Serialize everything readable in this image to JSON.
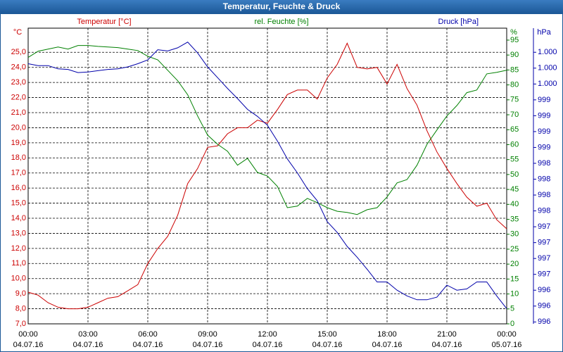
{
  "chart_data": {
    "type": "line",
    "title": "Temperatur, Feuchte & Druck",
    "y_unit": "°C",
    "y2_unit": "%",
    "y3_unit": "hPa",
    "grid": true,
    "x": [
      0,
      0.5,
      1,
      1.5,
      2,
      2.5,
      3,
      3.5,
      4,
      4.5,
      5,
      5.5,
      6,
      6.5,
      7,
      7.5,
      8,
      8.5,
      9,
      9.5,
      10,
      10.5,
      11,
      11.5,
      12,
      12.5,
      13,
      13.5,
      14,
      14.5,
      15,
      15.5,
      16,
      16.5,
      17,
      17.5,
      18,
      18.5,
      19,
      19.5,
      20,
      20.5,
      21,
      21.5,
      22,
      22.5,
      23,
      23.5,
      24
    ],
    "xlim": [
      0,
      24
    ],
    "xticks": [
      {
        "value": 0,
        "label": "00:00"
      },
      {
        "value": 3,
        "label": "03:00"
      },
      {
        "value": 6,
        "label": "06:00"
      },
      {
        "value": 9,
        "label": "09:00"
      },
      {
        "value": 12,
        "label": "12:00"
      },
      {
        "value": 15,
        "label": "15:00"
      },
      {
        "value": 18,
        "label": "18:00"
      },
      {
        "value": 21,
        "label": "21:00"
      },
      {
        "value": 24,
        "label": "00:00"
      }
    ],
    "xtick_dates": [
      "04.07.16",
      "04.07.16",
      "04.07.16",
      "04.07.16",
      "04.07.16",
      "04.07.16",
      "04.07.16",
      "04.07.16",
      "05.07.16"
    ],
    "ylim": [
      7,
      26.6
    ],
    "yticks": [
      {
        "value": 7,
        "label": "7,0"
      },
      {
        "value": 8,
        "label": "8,0"
      },
      {
        "value": 9,
        "label": "9,0"
      },
      {
        "value": 10,
        "label": "10,0"
      },
      {
        "value": 11,
        "label": "11,0"
      },
      {
        "value": 12,
        "label": "12,0"
      },
      {
        "value": 13,
        "label": "13,0"
      },
      {
        "value": 14,
        "label": "14,0"
      },
      {
        "value": 15,
        "label": "15,0"
      },
      {
        "value": 16,
        "label": "16,0"
      },
      {
        "value": 17,
        "label": "17,0"
      },
      {
        "value": 18,
        "label": "18,0"
      },
      {
        "value": 19,
        "label": "19,0"
      },
      {
        "value": 20,
        "label": "20,0"
      },
      {
        "value": 21,
        "label": "21,0"
      },
      {
        "value": 22,
        "label": "22,0"
      },
      {
        "value": 23,
        "label": "23,0"
      },
      {
        "value": 24,
        "label": "24,0"
      },
      {
        "value": 25,
        "label": "25,0"
      }
    ],
    "y2lim": [
      0,
      99
    ],
    "y2ticks": [
      0,
      5,
      10,
      15,
      20,
      25,
      30,
      35,
      40,
      45,
      50,
      55,
      60,
      65,
      70,
      75,
      80,
      85,
      90,
      95
    ],
    "y3lim": [
      995.72,
      1000.38
    ],
    "y3ticks": [
      {
        "value": 995.75,
        "label": "996"
      },
      {
        "value": 996,
        "label": "996"
      },
      {
        "value": 996.25,
        "label": "996"
      },
      {
        "value": 996.5,
        "label": "997"
      },
      {
        "value": 996.75,
        "label": "997"
      },
      {
        "value": 997,
        "label": "997"
      },
      {
        "value": 997.25,
        "label": "997"
      },
      {
        "value": 997.5,
        "label": "998"
      },
      {
        "value": 997.75,
        "label": "998"
      },
      {
        "value": 998,
        "label": "998"
      },
      {
        "value": 998.25,
        "label": "998"
      },
      {
        "value": 998.5,
        "label": "999"
      },
      {
        "value": 998.75,
        "label": "999"
      },
      {
        "value": 999,
        "label": "999"
      },
      {
        "value": 999.25,
        "label": "999"
      },
      {
        "value": 999.5,
        "label": "1.000"
      },
      {
        "value": 999.75,
        "label": "1.000"
      },
      {
        "value": 1000,
        "label": "1.000"
      }
    ],
    "series": [
      {
        "name": "Temperatur [°C]",
        "color": "#cc0000",
        "axis": "y",
        "values": [
          9.1,
          8.9,
          8.4,
          8.1,
          8.0,
          8.0,
          8.1,
          8.4,
          8.7,
          8.8,
          9.2,
          9.6,
          11.0,
          12.0,
          12.8,
          14.2,
          16.3,
          17.3,
          18.7,
          18.8,
          19.6,
          20.0,
          20.0,
          20.5,
          20.3,
          21.2,
          22.2,
          22.5,
          22.5,
          21.9,
          23.3,
          24.2,
          25.6,
          24.0,
          23.9,
          24.0,
          22.9,
          24.2,
          22.6,
          21.5,
          19.8,
          18.4,
          17.3,
          16.3,
          15.4,
          14.8,
          15.0,
          13.9,
          13.3
        ]
      },
      {
        "name": "rel. Feuchte [%]",
        "color": "#008000",
        "axis": "y2",
        "values": [
          89.2,
          91.3,
          92.0,
          92.7,
          92.0,
          93.2,
          93.2,
          92.9,
          92.7,
          92.5,
          92.0,
          91.5,
          89.6,
          88.4,
          84.9,
          81.4,
          76.7,
          69.6,
          63.2,
          60.1,
          57.8,
          53.1,
          55.4,
          50.7,
          49.5,
          46.0,
          38.9,
          39.4,
          42.0,
          40.6,
          38.9,
          37.7,
          37.3,
          36.6,
          38.2,
          38.9,
          42.5,
          47.2,
          48.3,
          53.1,
          60.1,
          64.9,
          69.6,
          73.1,
          77.4,
          78.3,
          83.7,
          84.2,
          84.9
        ]
      },
      {
        "name": "Druck [hPa]",
        "color": "#0000aa",
        "axis": "y3",
        "values": [
          999.82,
          999.79,
          999.79,
          999.74,
          999.73,
          999.68,
          999.69,
          999.71,
          999.73,
          999.74,
          999.77,
          999.82,
          999.88,
          1000.04,
          1000.02,
          1000.07,
          1000.16,
          999.99,
          999.77,
          999.6,
          999.43,
          999.27,
          999.1,
          998.99,
          998.85,
          998.6,
          998.32,
          998.1,
          997.85,
          997.66,
          997.33,
          997.16,
          996.94,
          996.77,
          996.58,
          996.38,
          996.38,
          996.25,
          996.16,
          996.1,
          996.1,
          996.14,
          996.33,
          996.25,
          996.27,
          996.38,
          996.38,
          996.16,
          995.96
        ]
      }
    ]
  }
}
